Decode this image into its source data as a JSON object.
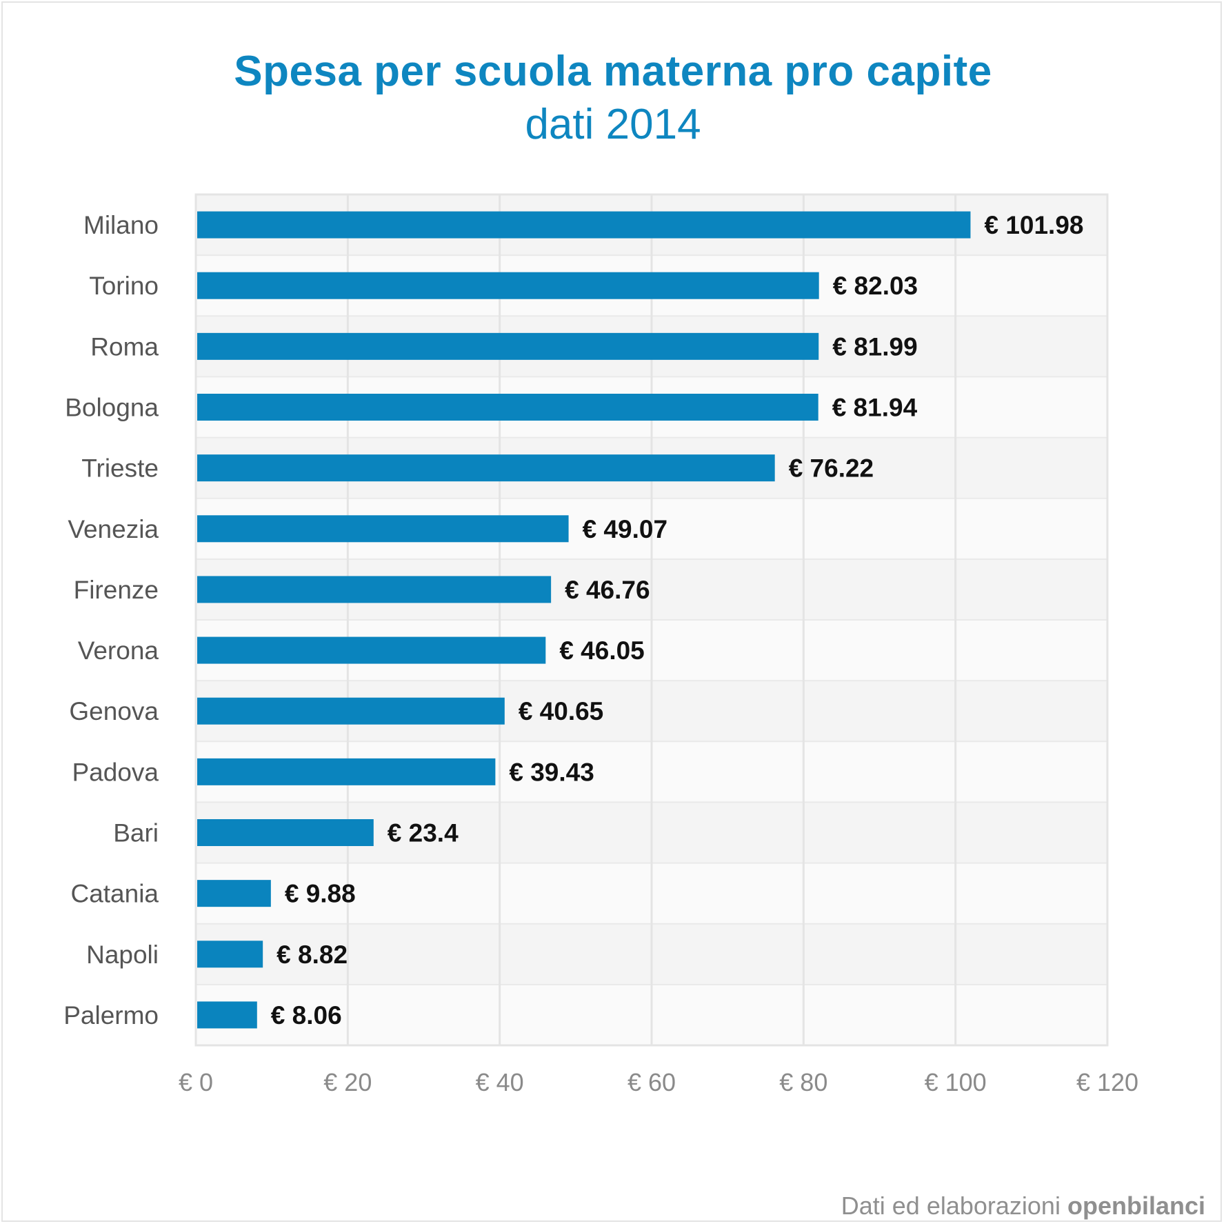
{
  "title": "Spesa per scuola materna pro capite",
  "subtitle": "dati 2014",
  "credit": {
    "text": "Dati ed elaborazioni",
    "brand": "openbilanci"
  },
  "colors": {
    "bar": "#0a84be",
    "title": "#0e86c0",
    "label": "#555555",
    "value": "#111111"
  },
  "chart_data": {
    "type": "bar",
    "orientation": "horizontal",
    "title": "Spesa per scuola materna pro capite",
    "subtitle": "dati 2014",
    "categories": [
      "Milano",
      "Torino",
      "Roma",
      "Bologna",
      "Trieste",
      "Venezia",
      "Firenze",
      "Verona",
      "Genova",
      "Padova",
      "Bari",
      "Catania",
      "Napoli",
      "Palermo"
    ],
    "values": [
      101.98,
      82.03,
      81.99,
      81.94,
      76.22,
      49.07,
      46.76,
      46.05,
      40.65,
      39.43,
      23.4,
      9.88,
      8.82,
      8.06
    ],
    "value_labels": [
      "€ 101.98",
      "€ 82.03",
      "€ 81.99",
      "€ 81.94",
      "€ 76.22",
      "€ 49.07",
      "€ 46.76",
      "€ 46.05",
      "€ 40.65",
      "€ 39.43",
      "€ 23.4",
      "€ 9.88",
      "€ 8.82",
      "€ 8.06"
    ],
    "xlim": [
      0,
      120
    ],
    "xticks": [
      0,
      20,
      40,
      60,
      80,
      100,
      120
    ],
    "xtick_labels": [
      "€ 0",
      "€ 20",
      "€ 40",
      "€ 60",
      "€ 80",
      "€ 100",
      "€ 120"
    ],
    "xlabel": "",
    "ylabel": "",
    "grid": true,
    "legend": "none"
  }
}
